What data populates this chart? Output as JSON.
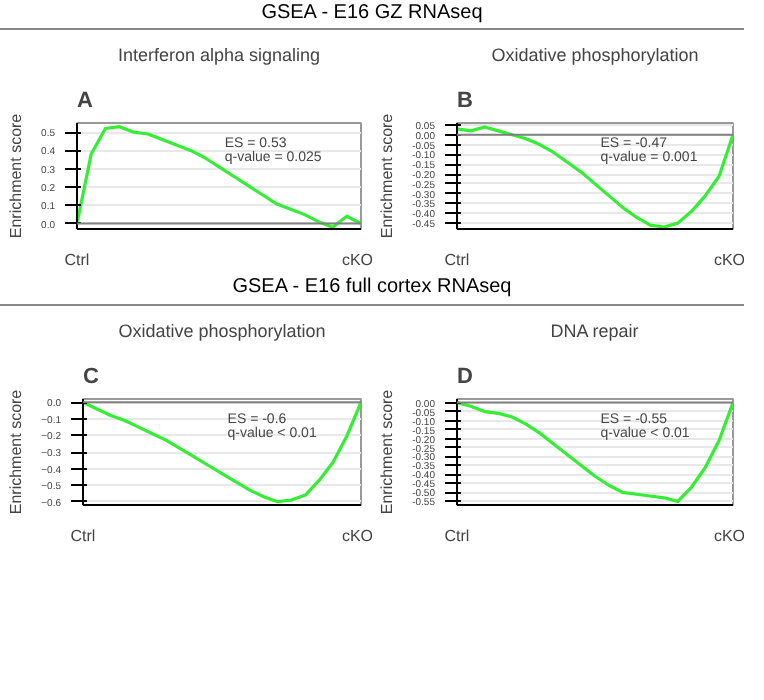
{
  "chart_data": [
    {
      "type": "line",
      "subtitle": "GSEA - E16 GZ RNAseq",
      "title": "Interferon alpha signaling",
      "ylabel": "Enrichment score",
      "annotations": [
        "A",
        "ES = 0.53",
        "q-value = 0.025",
        "Ctrl",
        "cKO"
      ],
      "categories": [
        null,
        null,
        null,
        null,
        null,
        null,
        null,
        null,
        null,
        null,
        null,
        null,
        null,
        null,
        null,
        null,
        null,
        null,
        null,
        null,
        null
      ],
      "series": [
        {
          "color": "#33ee33",
          "values": [
            0.0,
            0.38,
            0.52,
            0.53,
            0.5,
            0.49,
            0.46,
            0.43,
            0.4,
            0.36,
            0.31,
            0.26,
            0.21,
            0.16,
            0.11,
            0.08,
            0.05,
            0.01,
            -0.02,
            0.04,
            0.0
          ]
        }
      ],
      "ylim": [
        -0.03,
        0.55
      ],
      "yticks": [
        {
          "value": 0,
          "label": "0.0"
        },
        0.1,
        0.2,
        0.3,
        0.4,
        0.5
      ],
      "ref_lines": [
        {
          "axis": "y",
          "value": 0,
          "color": "#808080"
        }
      ],
      "grid": "y",
      "marker": "none",
      "line_style": "solid"
    },
    {
      "type": "line",
      "title": "Oxidative phosphorylation",
      "ylabel": "Enrichment score",
      "annotations": [
        "B",
        "ES = -0.47",
        "q-value = 0.001",
        "Ctrl",
        "cKO"
      ],
      "categories": [
        null,
        null,
        null,
        null,
        null,
        null,
        null,
        null,
        null,
        null,
        null,
        null,
        null,
        null,
        null,
        null,
        null,
        null,
        null,
        null,
        null
      ],
      "series": [
        {
          "color": "#33ee33",
          "values": [
            0.03,
            0.02,
            0.04,
            0.02,
            0.0,
            -0.02,
            -0.05,
            -0.09,
            -0.14,
            -0.19,
            -0.25,
            -0.31,
            -0.37,
            -0.42,
            -0.46,
            -0.47,
            -0.45,
            -0.39,
            -0.31,
            -0.21,
            0.0
          ]
        }
      ],
      "ylim": [
        -0.48,
        0.06
      ],
      "yticks": [
        {
          "value": 0.05,
          "label": "0.05"
        },
        {
          "value": 0,
          "label": "0.00"
        },
        {
          "value": -0.05,
          "label": "-0.05"
        },
        {
          "value": -0.1,
          "label": "-0.10"
        },
        {
          "value": -0.15,
          "label": "-0.15"
        },
        {
          "value": -0.2,
          "label": "-0.20"
        },
        {
          "value": -0.25,
          "label": "-0.25"
        },
        {
          "value": -0.3,
          "label": "-0.30"
        },
        {
          "value": -0.35,
          "label": "-0.35"
        },
        {
          "value": -0.4,
          "label": "-0.40"
        },
        {
          "value": -0.45,
          "label": "-0.45"
        }
      ],
      "ref_lines": [
        {
          "axis": "y",
          "value": 0,
          "color": "#808080"
        }
      ],
      "grid": "y",
      "marker": "none",
      "line_style": "solid"
    },
    {
      "type": "line",
      "subtitle": "GSEA - E16 full cortex RNAseq",
      "title": "Oxidative phosphorylation",
      "ylabel": "Enrichment score",
      "annotations": [
        "C",
        "ES = -0.6",
        "q-value < 0.01",
        "Ctrl",
        "cKO"
      ],
      "categories": [
        null,
        null,
        null,
        null,
        null,
        null,
        null,
        null,
        null,
        null,
        null,
        null,
        null,
        null,
        null,
        null,
        null,
        null,
        null,
        null,
        null
      ],
      "series": [
        {
          "color": "#33ee33",
          "values": [
            0.0,
            -0.04,
            -0.08,
            -0.11,
            -0.15,
            -0.19,
            -0.23,
            -0.28,
            -0.33,
            -0.38,
            -0.43,
            -0.48,
            -0.53,
            -0.57,
            -0.6,
            -0.59,
            -0.56,
            -0.47,
            -0.36,
            -0.2,
            0.0
          ]
        }
      ],
      "ylim": [
        -0.62,
        0.02
      ],
      "yticks": [
        {
          "value": 0,
          "label": "0.0"
        },
        -0.1,
        -0.2,
        -0.3,
        -0.4,
        -0.5,
        -0.6
      ],
      "ref_lines": [
        {
          "axis": "y",
          "value": 0,
          "color": "#808080"
        }
      ],
      "grid": "y",
      "marker": "none",
      "line_style": "solid"
    },
    {
      "type": "line",
      "title": "DNA repair",
      "ylabel": "Enrichment score",
      "annotations": [
        "D",
        "ES = -0.55",
        "q-value < 0.01",
        "Ctrl",
        "cKO"
      ],
      "categories": [
        null,
        null,
        null,
        null,
        null,
        null,
        null,
        null,
        null,
        null,
        null,
        null,
        null,
        null,
        null,
        null,
        null,
        null,
        null,
        null,
        null
      ],
      "series": [
        {
          "color": "#33ee33",
          "values": [
            0.0,
            -0.02,
            -0.05,
            -0.06,
            -0.08,
            -0.12,
            -0.17,
            -0.23,
            -0.29,
            -0.35,
            -0.41,
            -0.46,
            -0.5,
            -0.51,
            -0.52,
            -0.53,
            -0.55,
            -0.47,
            -0.36,
            -0.21,
            0.0
          ]
        }
      ],
      "ylim": [
        -0.57,
        0.02
      ],
      "yticks": [
        {
          "value": 0,
          "label": "0.00"
        },
        {
          "value": -0.05,
          "label": "-0.05"
        },
        {
          "value": -0.1,
          "label": "-0.10"
        },
        {
          "value": -0.15,
          "label": "-0.15"
        },
        {
          "value": -0.2,
          "label": "-0.20"
        },
        {
          "value": -0.25,
          "label": "-0.25"
        },
        {
          "value": -0.3,
          "label": "-0.30"
        },
        {
          "value": -0.35,
          "label": "-0.35"
        },
        {
          "value": -0.4,
          "label": "-0.40"
        },
        {
          "value": -0.45,
          "label": "-0.45"
        },
        {
          "value": -0.5,
          "label": "-0.50"
        },
        {
          "value": -0.55,
          "label": "-0.55"
        }
      ],
      "ref_lines": [
        {
          "axis": "y",
          "value": 0,
          "color": "#808080"
        }
      ],
      "grid": "y",
      "marker": "none",
      "line_style": "solid"
    }
  ]
}
